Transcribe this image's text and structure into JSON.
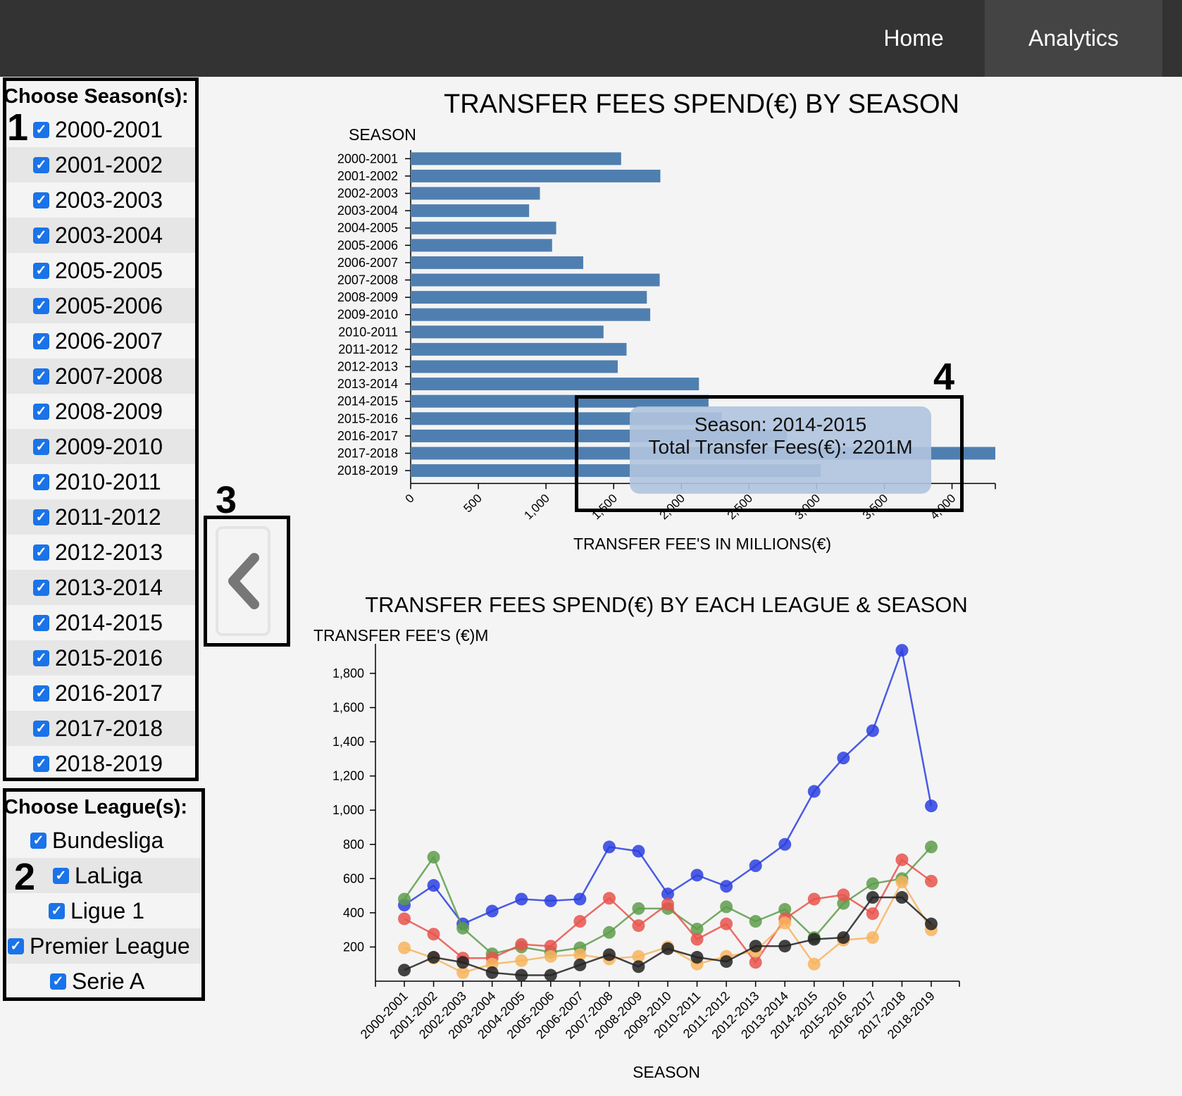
{
  "nav": {
    "home": "Home",
    "analytics": "Analytics"
  },
  "season_filter": {
    "title": "Choose Season(s):",
    "items": [
      {
        "label": "2000-2001",
        "checked": true
      },
      {
        "label": "2001-2002",
        "checked": true
      },
      {
        "label": "2003-2003",
        "checked": true
      },
      {
        "label": "2003-2004",
        "checked": true
      },
      {
        "label": "2005-2005",
        "checked": true
      },
      {
        "label": "2005-2006",
        "checked": true
      },
      {
        "label": "2006-2007",
        "checked": true
      },
      {
        "label": "2007-2008",
        "checked": true
      },
      {
        "label": "2008-2009",
        "checked": true
      },
      {
        "label": "2009-2010",
        "checked": true
      },
      {
        "label": "2010-2011",
        "checked": true
      },
      {
        "label": "2011-2012",
        "checked": true
      },
      {
        "label": "2012-2013",
        "checked": true
      },
      {
        "label": "2013-2014",
        "checked": true
      },
      {
        "label": "2014-2015",
        "checked": true
      },
      {
        "label": "2015-2016",
        "checked": true
      },
      {
        "label": "2016-2017",
        "checked": true
      },
      {
        "label": "2017-2018",
        "checked": true
      },
      {
        "label": "2018-2019",
        "checked": true
      }
    ]
  },
  "league_filter": {
    "title": "Choose League(s):",
    "items": [
      {
        "label": "Bundesliga",
        "checked": true
      },
      {
        "label": "LaLiga",
        "checked": true
      },
      {
        "label": "Ligue 1",
        "checked": true
      },
      {
        "label": "Premier League",
        "checked": true
      },
      {
        "label": "Serie A",
        "checked": true
      }
    ]
  },
  "markers": [
    "1",
    "2",
    "3",
    "4"
  ],
  "check_glyph": "✓",
  "tooltip": {
    "line1": "Season: 2014-2015",
    "line2": "Total Transfer Fees(€): 2201M"
  },
  "colors": {
    "bar": "#4f7fb0",
    "series": [
      "#2c3fe0",
      "#5e9c4b",
      "#e8534c",
      "#f7b45e",
      "#222222"
    ]
  },
  "chart_data": [
    {
      "type": "bar",
      "title": "TRANSFER FEES SPEND(€) BY SEASON",
      "ylabel": "SEASON",
      "xlabel": "TRANSFER FEE'S IN MILLIONS(€)",
      "categories": [
        "2000-2001",
        "2001-2002",
        "2002-2003",
        "2003-2004",
        "2004-2005",
        "2005-2006",
        "2006-2007",
        "2007-2008",
        "2008-2009",
        "2009-2010",
        "2010-2011",
        "2011-2012",
        "2012-2013",
        "2013-2014",
        "2014-2015",
        "2015-2016",
        "2016-2017",
        "2017-2018",
        "2018-2019"
      ],
      "values": [
        1555,
        1845,
        955,
        875,
        1075,
        1045,
        1275,
        1840,
        1745,
        1770,
        1425,
        1595,
        1530,
        2130,
        2201,
        2300,
        2780,
        4320,
        3030
      ],
      "xlim": [
        0,
        4320
      ],
      "xticks": [
        0,
        500,
        1000,
        1500,
        2000,
        2500,
        3000,
        3500,
        4000
      ],
      "xtick_labels": [
        "0",
        "500",
        "1,000",
        "1,500",
        "2,000",
        "2,500",
        "3,000",
        "3,500",
        "4,000"
      ]
    },
    {
      "type": "line",
      "title": "TRANSFER FEES SPEND(€) BY EACH LEAGUE & SEASON",
      "ylabel": "TRANSFER FEE'S (€)M",
      "xlabel": "SEASON",
      "categories": [
        "2000-2001",
        "2001-2002",
        "2002-2003",
        "2003-2004",
        "2004-2005",
        "2005-2006",
        "2006-2007",
        "2007-2008",
        "2008-2009",
        "2009-2010",
        "2010-2011",
        "2011-2012",
        "2012-2013",
        "2013-2014",
        "2014-2015",
        "2015-2016",
        "2016-2017",
        "2017-2018",
        "2018-2019"
      ],
      "ylim": [
        0,
        1900
      ],
      "yticks": [
        200,
        400,
        600,
        800,
        1000,
        1200,
        1400,
        1600,
        1800
      ],
      "ytick_labels": [
        "200",
        "400",
        "600",
        "800",
        "1,000",
        "1,200",
        "1,400",
        "1,600",
        "1,800"
      ],
      "series": [
        {
          "values": [
            445,
            560,
            335,
            410,
            480,
            470,
            480,
            785,
            760,
            510,
            620,
            555,
            675,
            800,
            1110,
            1305,
            1465,
            1935,
            1025
          ]
        },
        {
          "values": [
            480,
            725,
            310,
            160,
            200,
            170,
            195,
            285,
            425,
            425,
            305,
            435,
            350,
            420,
            255,
            455,
            570,
            600,
            785
          ]
        },
        {
          "values": [
            365,
            275,
            135,
            135,
            215,
            205,
            350,
            485,
            325,
            450,
            245,
            335,
            110,
            365,
            480,
            505,
            395,
            710,
            585
          ]
        },
        {
          "values": [
            195,
            135,
            50,
            100,
            120,
            145,
            155,
            130,
            145,
            200,
            100,
            145,
            175,
            340,
            100,
            240,
            255,
            580,
            300
          ]
        },
        {
          "values": [
            65,
            140,
            110,
            50,
            35,
            35,
            95,
            155,
            85,
            190,
            140,
            115,
            205,
            205,
            245,
            255,
            490,
            490,
            335
          ]
        }
      ]
    }
  ]
}
